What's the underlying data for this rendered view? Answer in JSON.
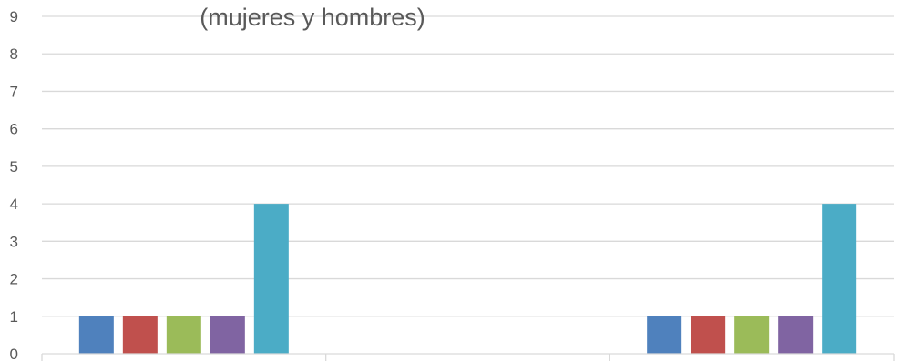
{
  "chart_data": {
    "type": "bar",
    "title": "",
    "subtitle": "(mujeres y hombres)",
    "xlabel": "",
    "ylabel": "",
    "ylim": [
      0,
      9
    ],
    "yticks": [
      "0",
      "1",
      "2",
      "3",
      "4",
      "5",
      "6",
      "7",
      "8",
      "9"
    ],
    "categories": [
      "",
      "",
      ""
    ],
    "grid": true,
    "series": [
      {
        "color": "#4F81BD",
        "values": [
          1,
          0,
          1
        ]
      },
      {
        "color": "#C0504D",
        "values": [
          1,
          0,
          1
        ]
      },
      {
        "color": "#9BBB59",
        "values": [
          1,
          0,
          1
        ]
      },
      {
        "color": "#8064A2",
        "values": [
          1,
          0,
          1
        ]
      },
      {
        "color": "#4BACC6",
        "values": [
          4,
          0,
          4
        ]
      }
    ]
  }
}
